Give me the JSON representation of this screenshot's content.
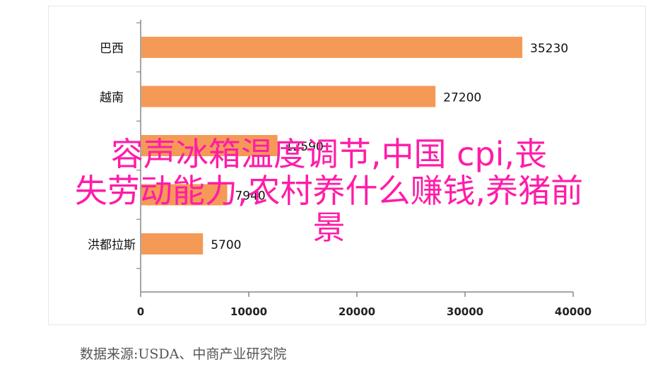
{
  "chart_data": {
    "type": "bar",
    "orientation": "horizontal",
    "categories": [
      "巴西",
      "越南",
      "",
      "",
      "洪都拉斯"
    ],
    "values": [
      35230,
      27200,
      12590,
      7940,
      5700
    ],
    "value_labels": [
      "35230",
      "27200",
      "12590",
      "7940",
      "5700"
    ],
    "xlim": [
      0,
      40000
    ],
    "xticks": [
      "0",
      "10000",
      "20000",
      "30000",
      "40000"
    ],
    "grid": false,
    "bar_color": "#f59a56"
  },
  "overlay": {
    "lines": [
      "容声冰箱温度调节,中国 cpi,丧",
      "失劳动能力,农村养什么赚钱,养猪前",
      "景"
    ],
    "color": "#ff1ca8"
  },
  "source": "数据来源:USDA、中商产业研究院"
}
